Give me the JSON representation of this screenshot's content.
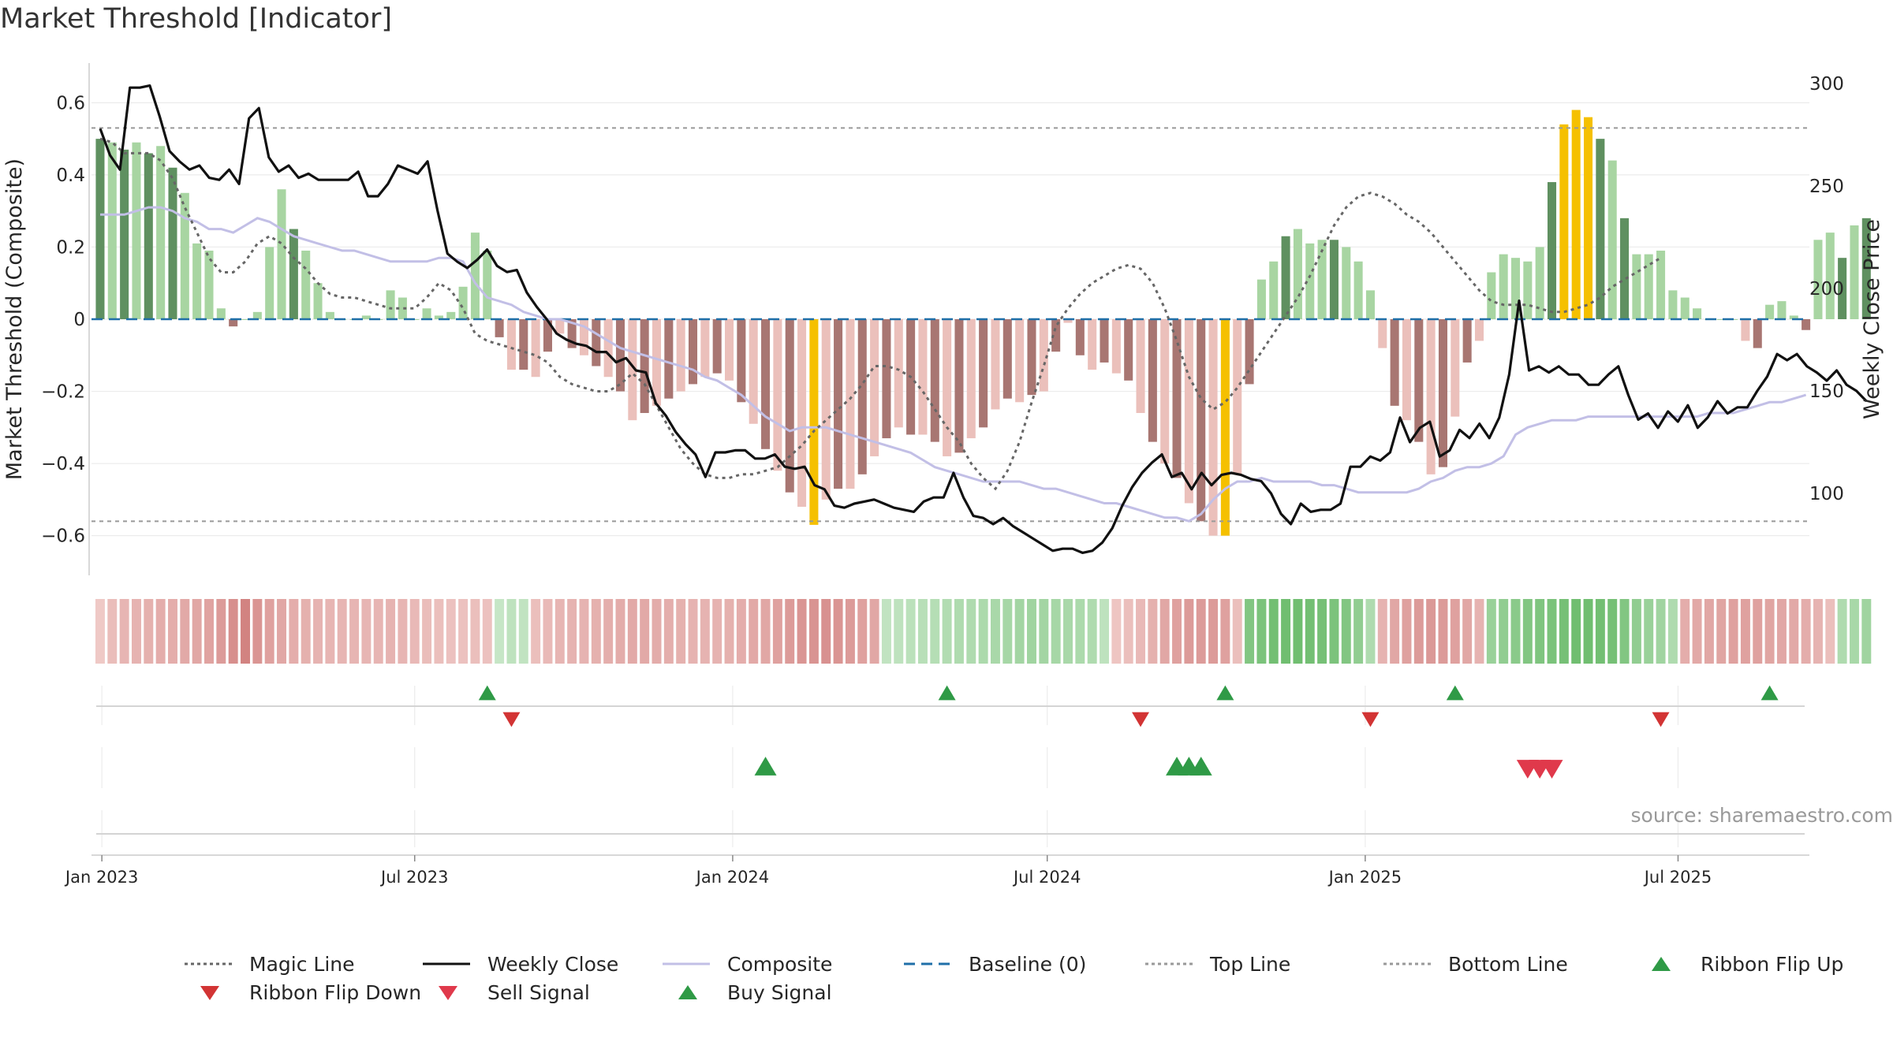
{
  "title": "Market Threshold [Indicator]",
  "source": "source: sharemaestro.com",
  "chart_data": {
    "type": "bar",
    "title": "Market Threshold [Indicator]",
    "ylabel": "Market Threshold (Composite)",
    "y2label": "Weekly Close Price",
    "ylim": [
      -0.71,
      0.71
    ],
    "y2lim": [
      60,
      310
    ],
    "xlim": [
      "2022-12-26",
      "2025-09-15"
    ],
    "yticks": [
      0.6,
      0.4,
      0.2,
      0,
      -0.2,
      -0.4,
      -0.6
    ],
    "ytick_labels": [
      "0.6",
      "0.4",
      "0.2",
      "0",
      "−0.2",
      "−0.4",
      "−0.6"
    ],
    "y2ticks": [
      300,
      250,
      200,
      150,
      100
    ],
    "xticks": [
      "2023-01-01",
      "2023-07-01",
      "2024-01-01",
      "2024-07-01",
      "2025-01-01",
      "2025-07-01"
    ],
    "xtick_labels": [
      "Jan 2023",
      "Jul 2023",
      "Jan 2024",
      "Jul 2024",
      "Jan 2025",
      "Jul 2025"
    ],
    "top_line": 0.53,
    "bottom_line": -0.56,
    "baseline": 0,
    "start_date": "2022-12-31",
    "grid": true,
    "legend_position": "bottom",
    "colors": {
      "strong_pos": "#5f9060",
      "pos": "#a8d5a2",
      "strong_neg": "#a87672",
      "neg": "#ebc0bb",
      "extreme": "#f5c000",
      "close": "#111111",
      "composite": "#c2bfe6",
      "magic": "#666666",
      "baseline": "#1f6fa8",
      "flip_up": "#2f9a46",
      "flip_down": "#d23434",
      "sell": "#e0394b",
      "buy": "#2f9a46"
    },
    "bars": [
      0.5,
      0.49,
      0.47,
      0.49,
      0.46,
      0.48,
      0.42,
      0.35,
      0.21,
      0.19,
      0.03,
      -0.02,
      0,
      0.02,
      0.2,
      0.36,
      0.25,
      0.19,
      0.1,
      0.02,
      0,
      0,
      0.01,
      0,
      0.08,
      0.06,
      0,
      0.03,
      0.01,
      0.02,
      0.09,
      0.24,
      0.19,
      -0.05,
      -0.14,
      -0.14,
      -0.16,
      -0.09,
      -0.04,
      -0.08,
      -0.1,
      -0.13,
      -0.16,
      -0.2,
      -0.28,
      -0.26,
      -0.24,
      -0.22,
      -0.2,
      -0.18,
      -0.16,
      -0.15,
      -0.17,
      -0.23,
      -0.29,
      -0.36,
      -0.42,
      -0.48,
      -0.52,
      -0.57,
      -0.5,
      -0.47,
      -0.47,
      -0.43,
      -0.38,
      -0.33,
      -0.3,
      -0.32,
      -0.32,
      -0.34,
      -0.38,
      -0.37,
      -0.33,
      -0.3,
      -0.25,
      -0.22,
      -0.23,
      -0.21,
      -0.2,
      -0.09,
      -0.01,
      -0.1,
      -0.14,
      -0.12,
      -0.15,
      -0.17,
      -0.26,
      -0.34,
      -0.4,
      -0.44,
      -0.51,
      -0.56,
      -0.6,
      -0.6,
      -0.43,
      -0.18,
      0.11,
      0.16,
      0.23,
      0.25,
      0.21,
      0.22,
      0.22,
      0.2,
      0.16,
      0.08,
      -0.08,
      -0.24,
      -0.28,
      -0.34,
      -0.43,
      -0.41,
      -0.27,
      -0.12,
      -0.06,
      0.13,
      0.18,
      0.17,
      0.16,
      0.2,
      0.38,
      0.54,
      0.58,
      0.56,
      0.5,
      0.44,
      0.28,
      0.18,
      0.18,
      0.19,
      0.08,
      0.06,
      0.03,
      0,
      0,
      0,
      -0.06,
      -0.08,
      0.04,
      0.05,
      0.01,
      -0.03,
      0.22,
      0.24,
      0.17,
      0.26,
      0.28
    ],
    "composite": [
      0.29,
      0.29,
      0.29,
      0.3,
      0.31,
      0.31,
      0.3,
      0.28,
      0.27,
      0.25,
      0.25,
      0.24,
      0.26,
      0.28,
      0.27,
      0.25,
      0.23,
      0.22,
      0.21,
      0.2,
      0.19,
      0.19,
      0.18,
      0.17,
      0.16,
      0.16,
      0.16,
      0.16,
      0.17,
      0.17,
      0.16,
      0.1,
      0.06,
      0.05,
      0.04,
      0.02,
      0.01,
      0,
      0,
      -0.01,
      -0.02,
      -0.04,
      -0.06,
      -0.08,
      -0.09,
      -0.1,
      -0.11,
      -0.12,
      -0.13,
      -0.14,
      -0.16,
      -0.17,
      -0.19,
      -0.21,
      -0.24,
      -0.27,
      -0.29,
      -0.31,
      -0.3,
      -0.3,
      -0.3,
      -0.31,
      -0.32,
      -0.33,
      -0.34,
      -0.35,
      -0.36,
      -0.37,
      -0.39,
      -0.41,
      -0.42,
      -0.43,
      -0.44,
      -0.45,
      -0.45,
      -0.45,
      -0.45,
      -0.46,
      -0.47,
      -0.47,
      -0.48,
      -0.49,
      -0.5,
      -0.51,
      -0.51,
      -0.52,
      -0.53,
      -0.54,
      -0.55,
      -0.55,
      -0.56,
      -0.54,
      -0.5,
      -0.47,
      -0.45,
      -0.45,
      -0.44,
      -0.45,
      -0.45,
      -0.45,
      -0.45,
      -0.46,
      -0.46,
      -0.47,
      -0.48,
      -0.48,
      -0.48,
      -0.48,
      -0.48,
      -0.47,
      -0.45,
      -0.44,
      -0.42,
      -0.41,
      -0.41,
      -0.4,
      -0.38,
      -0.32,
      -0.3,
      -0.29,
      -0.28,
      -0.28,
      -0.28,
      -0.27,
      -0.27,
      -0.27,
      -0.27,
      -0.27,
      -0.27,
      -0.27,
      -0.27,
      -0.27,
      -0.27,
      -0.26,
      -0.26,
      -0.26,
      -0.25,
      -0.24,
      -0.23,
      -0.23,
      -0.22,
      -0.21
    ],
    "magic": [
      0.5,
      0.49,
      0.46,
      0.46,
      0.46,
      0.44,
      0.39,
      0.31,
      0.24,
      0.17,
      0.13,
      0.13,
      0.16,
      0.21,
      0.23,
      0.21,
      0.17,
      0.14,
      0.1,
      0.07,
      0.06,
      0.06,
      0.05,
      0.04,
      0.03,
      0.03,
      0.03,
      0.06,
      0.1,
      0.08,
      0.03,
      -0.04,
      -0.06,
      -0.07,
      -0.08,
      -0.09,
      -0.1,
      -0.12,
      -0.16,
      -0.18,
      -0.19,
      -0.2,
      -0.2,
      -0.18,
      -0.15,
      -0.18,
      -0.24,
      -0.3,
      -0.36,
      -0.4,
      -0.43,
      -0.44,
      -0.44,
      -0.43,
      -0.43,
      -0.42,
      -0.41,
      -0.38,
      -0.35,
      -0.31,
      -0.28,
      -0.25,
      -0.22,
      -0.18,
      -0.13,
      -0.13,
      -0.14,
      -0.16,
      -0.2,
      -0.25,
      -0.3,
      -0.34,
      -0.4,
      -0.44,
      -0.47,
      -0.42,
      -0.34,
      -0.23,
      -0.13,
      -0.02,
      0.03,
      0.07,
      0.1,
      0.12,
      0.14,
      0.15,
      0.14,
      0.1,
      0.03,
      -0.06,
      -0.16,
      -0.22,
      -0.25,
      -0.23,
      -0.19,
      -0.14,
      -0.09,
      -0.04,
      0.01,
      0.06,
      0.12,
      0.19,
      0.26,
      0.31,
      0.34,
      0.35,
      0.34,
      0.32,
      0.29,
      0.27,
      0.24,
      0.2,
      0.16,
      0.12,
      0.08,
      0.05,
      0.04,
      0.04,
      0.04,
      0.03,
      0.02,
      0.02,
      0.03,
      0.04,
      0.06,
      0.09,
      0.11,
      0.13,
      0.15,
      0.17
    ],
    "weekly_close": [
      278,
      265,
      258,
      298,
      298,
      299,
      284,
      267,
      262,
      258,
      260,
      254,
      253,
      258,
      251,
      283,
      288,
      264,
      257,
      260,
      254,
      256,
      253,
      253,
      253,
      253,
      257,
      245,
      245,
      251,
      260,
      258,
      256,
      262,
      238,
      217,
      213,
      210,
      214,
      219,
      211,
      208,
      209,
      198,
      191,
      185,
      178,
      175,
      173,
      172,
      169,
      169,
      164,
      166,
      160,
      159,
      144,
      138,
      130,
      124,
      119,
      108,
      120,
      120,
      121,
      121,
      117,
      117,
      119,
      113,
      112,
      113,
      104,
      102,
      94,
      93,
      95,
      96,
      97,
      95,
      93,
      92,
      91,
      96,
      98,
      98,
      110,
      98,
      89,
      88,
      85,
      88,
      84,
      81,
      78,
      75,
      72,
      73,
      73,
      71,
      72,
      76,
      83,
      94,
      103,
      110,
      115,
      119,
      108,
      110,
      102,
      110,
      104,
      109,
      110,
      109,
      107,
      106,
      100,
      90,
      85,
      95,
      91,
      92,
      92,
      95,
      113,
      113,
      118,
      116,
      120,
      137,
      125,
      132,
      135,
      118,
      121,
      131,
      127,
      134,
      127,
      137,
      158,
      194,
      160,
      162,
      159,
      162,
      158,
      158,
      153,
      153,
      158,
      162,
      148,
      136,
      139,
      132,
      140,
      135,
      143,
      132,
      137,
      145,
      139,
      142,
      142,
      150,
      157,
      168,
      165,
      168,
      162,
      159,
      155,
      160,
      153,
      150,
      145
    ],
    "ribbon": [
      -0.12,
      -0.22,
      -0.28,
      -0.3,
      -0.32,
      -0.35,
      -0.35,
      -0.38,
      -0.4,
      -0.43,
      -0.5,
      -0.6,
      -0.7,
      -0.55,
      -0.45,
      -0.4,
      -0.35,
      -0.32,
      -0.3,
      -0.28,
      -0.28,
      -0.28,
      -0.28,
      -0.28,
      -0.3,
      -0.28,
      -0.25,
      -0.22,
      -0.2,
      -0.18,
      -0.18,
      -0.2,
      -0.18,
      0.15,
      0.2,
      0.18,
      -0.2,
      -0.25,
      -0.28,
      -0.3,
      -0.3,
      -0.32,
      -0.34,
      -0.36,
      -0.38,
      -0.38,
      -0.36,
      -0.34,
      -0.32,
      -0.3,
      -0.3,
      -0.3,
      -0.32,
      -0.35,
      -0.38,
      -0.4,
      -0.45,
      -0.5,
      -0.55,
      -0.56,
      -0.58,
      -0.55,
      -0.5,
      -0.45,
      -0.4,
      0.18,
      0.2,
      0.22,
      0.24,
      0.26,
      0.28,
      0.3,
      0.3,
      0.32,
      0.34,
      0.36,
      0.38,
      0.4,
      0.38,
      0.36,
      0.34,
      0.32,
      0.3,
      0.2,
      -0.15,
      -0.2,
      -0.25,
      -0.32,
      -0.4,
      -0.45,
      -0.5,
      -0.5,
      -0.5,
      -0.45,
      -0.2,
      0.6,
      0.65,
      0.7,
      0.72,
      0.72,
      0.7,
      0.68,
      0.64,
      0.6,
      0.5,
      0.3,
      -0.3,
      -0.4,
      -0.45,
      -0.5,
      -0.52,
      -0.5,
      -0.45,
      -0.4,
      -0.3,
      0.45,
      0.5,
      0.55,
      0.6,
      0.62,
      0.65,
      0.68,
      0.72,
      0.72,
      0.7,
      0.68,
      0.6,
      0.5,
      0.45,
      0.4,
      0.3,
      -0.35,
      -0.38,
      -0.4,
      -0.42,
      -0.45,
      -0.45,
      -0.45,
      -0.42,
      -0.4,
      -0.38,
      -0.35,
      -0.3,
      -0.2,
      0.3,
      0.35,
      0.4
    ],
    "ribbon_flip_up": [
      "2023-08-12",
      "2024-05-04",
      "2024-10-12",
      "2025-02-22",
      "2025-08-23"
    ],
    "ribbon_flip_down": [
      "2023-08-26",
      "2024-08-24",
      "2025-01-04",
      "2025-06-21"
    ],
    "buy_signals": [
      "2024-01-20",
      "2024-09-14",
      "2024-09-21",
      "2024-09-28"
    ],
    "sell_signals": [
      "2025-04-05",
      "2025-04-12",
      "2025-04-19"
    ],
    "legend": [
      {
        "label": "Magic Line",
        "style": "dotted-line",
        "color": "#666666"
      },
      {
        "label": "Weekly Close",
        "style": "solid-line",
        "color": "#111111"
      },
      {
        "label": "Composite",
        "style": "solid-line",
        "color": "#c2bfe6"
      },
      {
        "label": "Baseline (0)",
        "style": "dashed-line",
        "color": "#1f6fa8"
      },
      {
        "label": "Top Line",
        "style": "dotted-line",
        "color": "#999999"
      },
      {
        "label": "Bottom Line",
        "style": "dotted-line",
        "color": "#999999"
      },
      {
        "label": "Ribbon Flip Up",
        "style": "triangle-up",
        "color": "#2f9a46"
      },
      {
        "label": "Ribbon Flip Down",
        "style": "triangle-down",
        "color": "#d23434"
      },
      {
        "label": "Sell Signal",
        "style": "triangle-down",
        "color": "#e0394b"
      },
      {
        "label": "Buy Signal",
        "style": "triangle-up",
        "color": "#2f9a46"
      }
    ]
  }
}
